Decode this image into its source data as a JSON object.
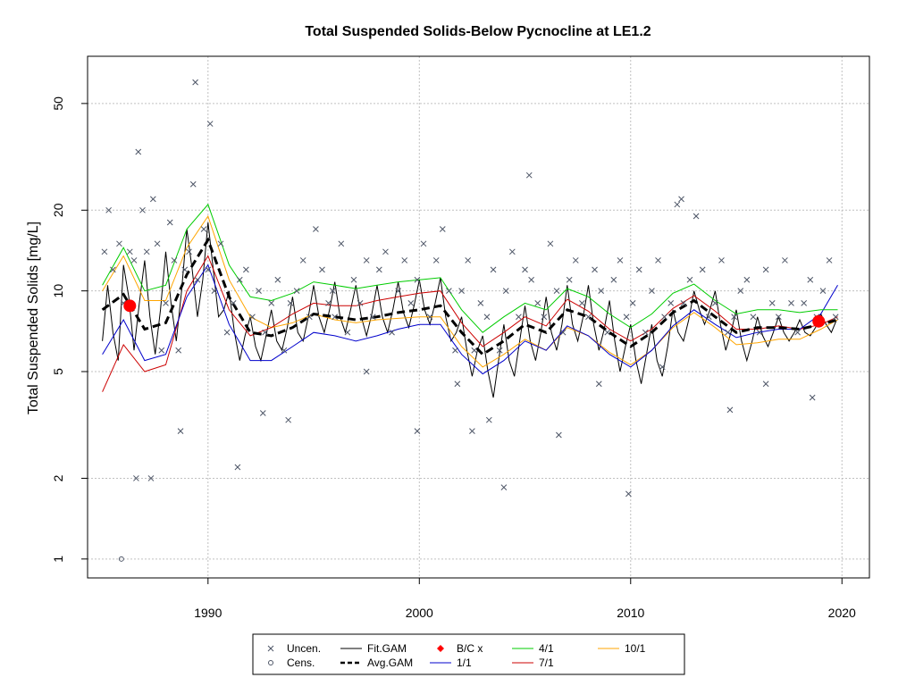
{
  "chart_data": {
    "type": "scatter",
    "title": "Total Suspended Solids-Below Pycnocline at LE1.2",
    "xlabel": "",
    "ylabel": "Total Suspended Solids [mg/L]",
    "x_scale": "linear",
    "y_scale": "log",
    "xlim": [
      1984.3,
      2021.3
    ],
    "ylim": [
      0.85,
      75
    ],
    "x_ticks": [
      1990,
      2000,
      2010,
      2020
    ],
    "y_ticks": [
      1,
      2,
      5,
      10,
      20,
      50
    ],
    "grid": true,
    "legend_position": "bottom",
    "colors": {
      "points": "#4d5566",
      "fit": "#000000",
      "avg": "#000000",
      "bc": "#ff0000",
      "s1_1": "#0000cc",
      "s4_1": "#00cc00",
      "s7_1": "#cc0000",
      "s10_1": "#ffa500",
      "grid": "#c0c0c0"
    },
    "legend": [
      {
        "label": "Uncen.",
        "symbol": "cross",
        "color": "#4d5566"
      },
      {
        "label": "Fit.GAM",
        "symbol": "line",
        "color": "#000000"
      },
      {
        "label": "B/C x",
        "symbol": "diamond",
        "color": "#ff0000"
      },
      {
        "label": "4/1",
        "symbol": "line",
        "color": "#00cc00"
      },
      {
        "label": "10/1",
        "symbol": "line",
        "color": "#ffa500"
      },
      {
        "label": "Cens.",
        "symbol": "circle",
        "color": "#4d5566"
      },
      {
        "label": "Avg.GAM",
        "symbol": "dashed",
        "color": "#000000"
      },
      {
        "label": "1/1",
        "symbol": "line",
        "color": "#0000cc"
      },
      {
        "label": "7/1",
        "symbol": "line",
        "color": "#cc0000"
      }
    ],
    "series": [
      {
        "name": "Uncen.",
        "kind": "points",
        "x": [
          1985.1,
          1985.3,
          1985.5,
          1985.8,
          1986.0,
          1986.3,
          1986.5,
          1986.7,
          1986.9,
          1987.1,
          1987.4,
          1987.6,
          1987.8,
          1988.0,
          1988.2,
          1988.4,
          1988.6,
          1988.9,
          1989.1,
          1989.3,
          1989.5,
          1989.8,
          1990.0,
          1990.3,
          1990.6,
          1990.9,
          1991.2,
          1991.5,
          1991.8,
          1992.1,
          1992.4,
          1992.7,
          1993.0,
          1993.3,
          1993.6,
          1993.9,
          1994.2,
          1994.5,
          1994.8,
          1995.1,
          1995.4,
          1995.7,
          1996.0,
          1996.3,
          1996.6,
          1996.9,
          1997.2,
          1997.5,
          1997.8,
          1998.1,
          1998.4,
          1998.7,
          1999.0,
          1999.3,
          1999.6,
          1999.9,
          2000.2,
          2000.5,
          2000.8,
          2001.1,
          2001.4,
          2001.7,
          2002.0,
          2002.3,
          2002.6,
          2002.9,
          2003.2,
          2003.5,
          2003.8,
          2004.1,
          2004.4,
          2004.7,
          2005.0,
          2005.3,
          2005.6,
          2005.9,
          2006.2,
          2006.5,
          2006.8,
          2007.1,
          2007.4,
          2007.7,
          2008.0,
          2008.3,
          2008.6,
          2008.9,
          2009.2,
          2009.5,
          2009.8,
          2010.1,
          2010.4,
          2010.7,
          2011.0,
          2011.3,
          2011.6,
          2011.9,
          2012.2,
          2012.5,
          2012.8,
          2013.1,
          2013.4,
          2013.7,
          2014.0,
          2014.3,
          2014.6,
          2014.9,
          2015.2,
          2015.5,
          2015.8,
          2016.1,
          2016.4,
          2016.7,
          2017.0,
          2017.3,
          2017.6,
          2017.9,
          2018.2,
          2018.5,
          2018.8,
          2019.1,
          2019.4,
          2019.7,
          1989.4,
          1990.1,
          1986.6,
          1987.3,
          1991.4,
          1993.8,
          1999.9,
          2004.0,
          2005.2,
          2009.9,
          2002.5,
          1988.7,
          1995.9,
          2006.6,
          2012.4,
          2014.7,
          2018.6,
          1992.6,
          1997.5,
          2001.8,
          2003.3,
          2008.5,
          2011.5,
          2016.4
        ],
        "y": [
          14,
          20,
          12,
          15,
          9,
          14,
          13,
          33,
          20,
          14,
          22,
          15,
          6,
          9,
          18,
          13,
          6,
          12,
          14,
          25,
          11,
          17,
          12,
          10,
          15,
          7,
          9,
          11,
          12,
          8,
          10,
          7,
          9,
          11,
          6,
          9,
          10,
          13,
          8,
          17,
          12,
          9,
          8,
          15,
          7,
          11,
          9,
          13,
          8,
          12,
          14,
          7,
          10,
          13,
          9,
          11,
          15,
          8,
          13,
          17,
          10,
          6,
          10,
          13,
          6,
          9,
          8,
          12,
          6,
          10,
          14,
          8,
          12,
          11,
          9,
          8,
          15,
          10,
          7,
          11,
          13,
          9,
          8,
          12,
          10,
          7,
          11,
          13,
          8,
          9,
          12,
          7,
          10,
          13,
          8,
          9,
          21,
          9,
          11,
          19,
          12,
          8,
          9,
          13,
          7,
          8,
          10,
          11,
          8,
          7,
          12,
          9,
          8,
          13,
          9,
          7,
          9,
          11,
          8,
          10,
          13,
          8,
          60,
          42,
          2,
          2,
          2.2,
          3.3,
          3.0,
          1.85,
          27,
          1.75,
          3,
          3,
          10,
          2.9,
          22,
          3.6,
          4,
          3.5,
          5,
          4.5,
          3.3,
          4.5,
          5.2,
          4.5
        ],
        "style": "cross"
      },
      {
        "name": "Cens.",
        "kind": "points",
        "x": [
          1985.9
        ],
        "y": [
          1.0
        ],
        "style": "circle"
      },
      {
        "name": "B/C x",
        "kind": "points",
        "x": [
          1986.3,
          2018.9
        ],
        "y": [
          8.8,
          7.7
        ],
        "style": "dot"
      },
      {
        "name": "Fit.GAM",
        "kind": "line",
        "x": [
          1985.0,
          1985.25,
          1985.5,
          1985.75,
          1986.0,
          1986.25,
          1986.5,
          1986.75,
          1987.0,
          1987.25,
          1987.5,
          1987.75,
          1988.0,
          1988.25,
          1988.5,
          1988.75,
          1989.0,
          1989.25,
          1989.5,
          1989.75,
          1990.0,
          1990.25,
          1990.5,
          1990.75,
          1991.0,
          1991.25,
          1991.5,
          1991.75,
          1992.0,
          1992.25,
          1992.5,
          1992.75,
          1993.0,
          1993.25,
          1993.5,
          1993.75,
          1994.0,
          1994.25,
          1994.5,
          1994.75,
          1995.0,
          1995.25,
          1995.5,
          1995.75,
          1996.0,
          1996.25,
          1996.5,
          1996.75,
          1997.0,
          1997.25,
          1997.5,
          1997.75,
          1998.0,
          1998.25,
          1998.5,
          1998.75,
          1999.0,
          1999.25,
          1999.5,
          1999.75,
          2000.0,
          2000.25,
          2000.5,
          2000.75,
          2001.0,
          2001.25,
          2001.5,
          2001.75,
          2002.0,
          2002.25,
          2002.5,
          2002.75,
          2003.0,
          2003.25,
          2003.5,
          2003.75,
          2004.0,
          2004.25,
          2004.5,
          2004.75,
          2005.0,
          2005.25,
          2005.5,
          2005.75,
          2006.0,
          2006.25,
          2006.5,
          2006.75,
          2007.0,
          2007.25,
          2007.5,
          2007.75,
          2008.0,
          2008.25,
          2008.5,
          2008.75,
          2009.0,
          2009.25,
          2009.5,
          2009.75,
          2010.0,
          2010.25,
          2010.5,
          2010.75,
          2011.0,
          2011.25,
          2011.5,
          2011.75,
          2012.0,
          2012.25,
          2012.5,
          2012.75,
          2013.0,
          2013.25,
          2013.5,
          2013.75,
          2014.0,
          2014.25,
          2014.5,
          2014.75,
          2015.0,
          2015.25,
          2015.5,
          2015.75,
          2016.0,
          2016.25,
          2016.5,
          2016.75,
          2017.0,
          2017.25,
          2017.5,
          2017.75,
          2018.0,
          2018.25,
          2018.5,
          2018.75,
          2019.0,
          2019.25,
          2019.5,
          2019.75
        ],
        "y": [
          6.5,
          10.5,
          7.0,
          5.5,
          12.5,
          9.5,
          6.0,
          9.0,
          13.0,
          8.0,
          5.8,
          8.5,
          14.0,
          9.0,
          6.5,
          10.0,
          17.0,
          12.0,
          8.0,
          11.0,
          18.0,
          12.0,
          8.0,
          8.5,
          10.0,
          7.0,
          5.5,
          6.8,
          8.0,
          6.2,
          5.5,
          6.8,
          8.5,
          6.5,
          6.0,
          7.3,
          9.5,
          7.0,
          6.5,
          8.0,
          10.5,
          8.0,
          7.0,
          8.5,
          10.8,
          8.0,
          7.0,
          8.5,
          10.5,
          8.0,
          6.8,
          8.2,
          10.5,
          8.0,
          7.0,
          8.5,
          10.8,
          8.3,
          7.3,
          8.8,
          11.0,
          8.5,
          7.5,
          9.0,
          11.2,
          8.0,
          6.5,
          7.0,
          8.0,
          6.0,
          4.8,
          6.0,
          6.8,
          5.0,
          4.0,
          5.5,
          7.5,
          5.5,
          4.8,
          6.5,
          8.8,
          6.5,
          5.5,
          7.0,
          9.5,
          7.0,
          6.0,
          7.5,
          10.5,
          7.5,
          6.5,
          8.0,
          10.5,
          7.5,
          6.0,
          7.2,
          9.2,
          6.5,
          5.0,
          6.2,
          7.5,
          5.5,
          4.5,
          5.8,
          7.5,
          5.5,
          4.8,
          6.2,
          8.5,
          7.0,
          6.5,
          7.8,
          10.0,
          8.5,
          7.5,
          8.5,
          10.0,
          7.5,
          6.0,
          7.0,
          8.5,
          6.5,
          5.5,
          6.5,
          8.0,
          6.8,
          6.2,
          7.0,
          8.0,
          7.0,
          6.5,
          7.0,
          7.8,
          7.0,
          6.8,
          7.3,
          8.2,
          7.5,
          7.0,
          7.8
        ],
        "style": "solid"
      },
      {
        "name": "Avg.GAM",
        "kind": "line",
        "x": [
          1985,
          1986,
          1987,
          1988,
          1989,
          1990,
          1991,
          1992,
          1993,
          1994,
          1995,
          1996,
          1997,
          1998,
          1999,
          2000,
          2001,
          2002,
          2003,
          2004,
          2005,
          2006,
          2007,
          2008,
          2009,
          2010,
          2011,
          2012,
          2013,
          2014,
          2015,
          2016,
          2017,
          2018,
          2019,
          2019.8
        ],
        "y": [
          8.5,
          9.7,
          7.2,
          7.6,
          11.5,
          15.5,
          9.5,
          7.0,
          6.8,
          7.3,
          8.2,
          8.0,
          7.8,
          8.0,
          8.3,
          8.5,
          8.8,
          7.0,
          5.8,
          6.5,
          7.5,
          7.0,
          8.5,
          8.0,
          7.0,
          6.2,
          7.0,
          8.3,
          9.2,
          8.0,
          7.0,
          7.3,
          7.3,
          7.2,
          7.5,
          7.8
        ],
        "style": "dashed"
      },
      {
        "name": "1/1",
        "kind": "line",
        "x": [
          1985,
          1986,
          1987,
          1988,
          1989,
          1990,
          1991,
          1992,
          1993,
          1994,
          1995,
          1996,
          1997,
          1998,
          1999,
          2000,
          2001,
          2002,
          2003,
          2004,
          2005,
          2006,
          2007,
          2008,
          2009,
          2010,
          2011,
          2012,
          2013,
          2014,
          2015,
          2016,
          2017,
          2018,
          2019,
          2019.8
        ],
        "y": [
          5.8,
          7.8,
          5.5,
          5.8,
          9.5,
          12.5,
          7.5,
          5.5,
          5.5,
          6.2,
          7.0,
          6.8,
          6.5,
          6.8,
          7.2,
          7.5,
          7.5,
          5.8,
          4.9,
          5.5,
          6.5,
          6.0,
          7.4,
          6.8,
          5.8,
          5.2,
          6.0,
          7.4,
          8.5,
          7.5,
          6.7,
          7.0,
          7.2,
          7.2,
          8.2,
          10.5
        ],
        "style": "solid"
      },
      {
        "name": "4/1",
        "kind": "line",
        "x": [
          1985,
          1986,
          1987,
          1988,
          1989,
          1990,
          1991,
          1992,
          1993,
          1994,
          1995,
          1996,
          1997,
          1998,
          1999,
          2000,
          2001,
          2002,
          2003,
          2004,
          2005,
          2006,
          2007,
          2008,
          2009,
          2010,
          2011,
          2012,
          2013,
          2014,
          2015,
          2016,
          2017,
          2018,
          2019,
          2019.8
        ],
        "y": [
          10.5,
          14.5,
          10.0,
          10.5,
          17.0,
          21.0,
          12.5,
          9.5,
          9.2,
          9.8,
          10.8,
          10.5,
          10.2,
          10.5,
          10.8,
          11.0,
          11.2,
          8.5,
          7.0,
          8.0,
          9.0,
          8.5,
          10.2,
          9.5,
          8.2,
          7.3,
          8.2,
          9.8,
          10.6,
          9.2,
          8.2,
          8.5,
          8.5,
          8.3,
          8.5,
          8.5
        ],
        "style": "solid"
      },
      {
        "name": "7/1",
        "kind": "line",
        "x": [
          1985,
          1986,
          1987,
          1988,
          1989,
          1990,
          1991,
          1992,
          1993,
          1994,
          1995,
          1996,
          1997,
          1998,
          1999,
          2000,
          2001,
          2002,
          2003,
          2004,
          2005,
          2006,
          2007,
          2008,
          2009,
          2010,
          2011,
          2012,
          2013,
          2014,
          2015,
          2016,
          2017,
          2018,
          2019,
          2019.8
        ],
        "y": [
          4.2,
          6.3,
          5.0,
          5.3,
          10.0,
          13.5,
          8.5,
          6.8,
          7.3,
          8.2,
          9.0,
          8.8,
          8.8,
          9.2,
          9.5,
          9.8,
          10.0,
          7.6,
          6.2,
          7.0,
          8.0,
          7.4,
          9.3,
          8.4,
          7.2,
          6.5,
          7.2,
          8.6,
          9.6,
          8.4,
          7.2,
          7.2,
          7.4,
          7.2,
          7.5,
          8.0
        ],
        "style": "solid"
      },
      {
        "name": "10/1",
        "kind": "line",
        "x": [
          1985,
          1986,
          1987,
          1988,
          1989,
          1990,
          1991,
          1992,
          1993,
          1994,
          1995,
          1996,
          1997,
          1998,
          1999,
          2000,
          2001,
          2002,
          2003,
          2004,
          2005,
          2006,
          2007,
          2008,
          2009,
          2010,
          2011,
          2012,
          2013,
          2014,
          2015,
          2016,
          2017,
          2018,
          2019,
          2019.8
        ],
        "y": [
          10.0,
          13.5,
          9.2,
          9.2,
          14.5,
          19.0,
          11.0,
          8.0,
          7.3,
          7.6,
          8.2,
          7.8,
          7.6,
          7.8,
          7.9,
          8.0,
          8.0,
          6.2,
          5.2,
          5.8,
          6.6,
          6.0,
          7.3,
          6.8,
          5.9,
          5.3,
          6.0,
          7.3,
          8.3,
          7.3,
          6.3,
          6.4,
          6.6,
          6.6,
          7.2,
          7.8
        ],
        "style": "solid"
      }
    ]
  }
}
